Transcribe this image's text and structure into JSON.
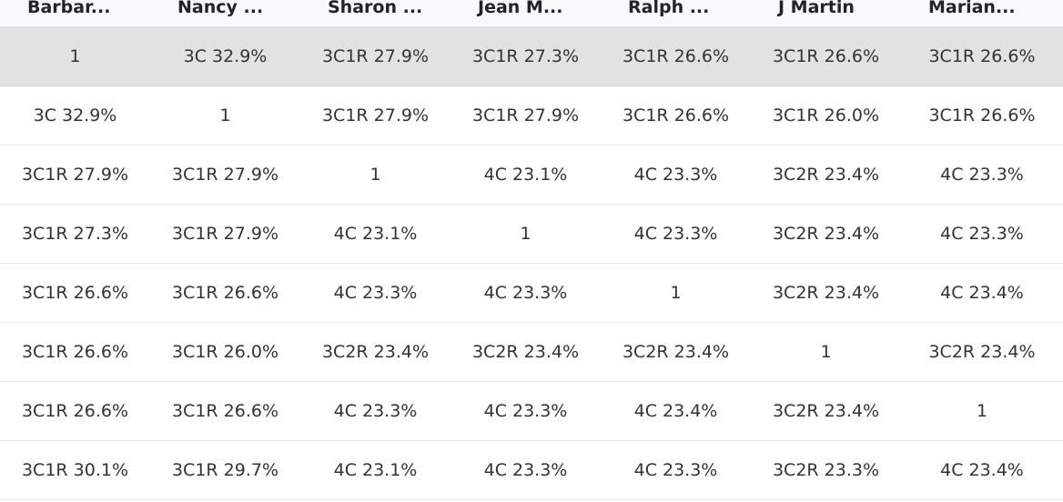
{
  "table": {
    "headers": [
      "Barbar...",
      "Nancy ...",
      "Sharon ...",
      "Jean M...",
      "Ralph ...",
      "J Martin",
      "Marian..."
    ],
    "rows": [
      [
        "1",
        "3C 32.9%",
        "3C1R 27.9%",
        "3C1R 27.3%",
        "3C1R 26.6%",
        "3C1R 26.6%",
        "3C1R 26.6%"
      ],
      [
        "3C 32.9%",
        "1",
        "3C1R 27.9%",
        "3C1R 27.9%",
        "3C1R 26.6%",
        "3C1R 26.0%",
        "3C1R 26.6%"
      ],
      [
        "3C1R 27.9%",
        "3C1R 27.9%",
        "1",
        "4C 23.1%",
        "4C 23.3%",
        "3C2R 23.4%",
        "4C 23.3%"
      ],
      [
        "3C1R 27.3%",
        "3C1R 27.9%",
        "4C 23.1%",
        "1",
        "4C 23.3%",
        "3C2R 23.4%",
        "4C 23.3%"
      ],
      [
        "3C1R 26.6%",
        "3C1R 26.6%",
        "4C 23.3%",
        "4C 23.3%",
        "1",
        "3C2R 23.4%",
        "4C 23.4%"
      ],
      [
        "3C1R 26.6%",
        "3C1R 26.0%",
        "3C2R 23.4%",
        "3C2R 23.4%",
        "3C2R 23.4%",
        "1",
        "3C2R 23.4%"
      ],
      [
        "3C1R 26.6%",
        "3C1R 26.6%",
        "4C 23.3%",
        "4C 23.3%",
        "4C 23.4%",
        "3C2R 23.4%",
        "1"
      ],
      [
        "3C1R 30.1%",
        "3C1R 29.7%",
        "4C 23.1%",
        "4C 23.3%",
        "4C 23.3%",
        "3C2R 23.3%",
        "4C 23.4%"
      ]
    ]
  },
  "colors": {
    "highlight_row": "#e2e2e2",
    "header_bg": "#f8f9fa",
    "text": "#333333"
  }
}
